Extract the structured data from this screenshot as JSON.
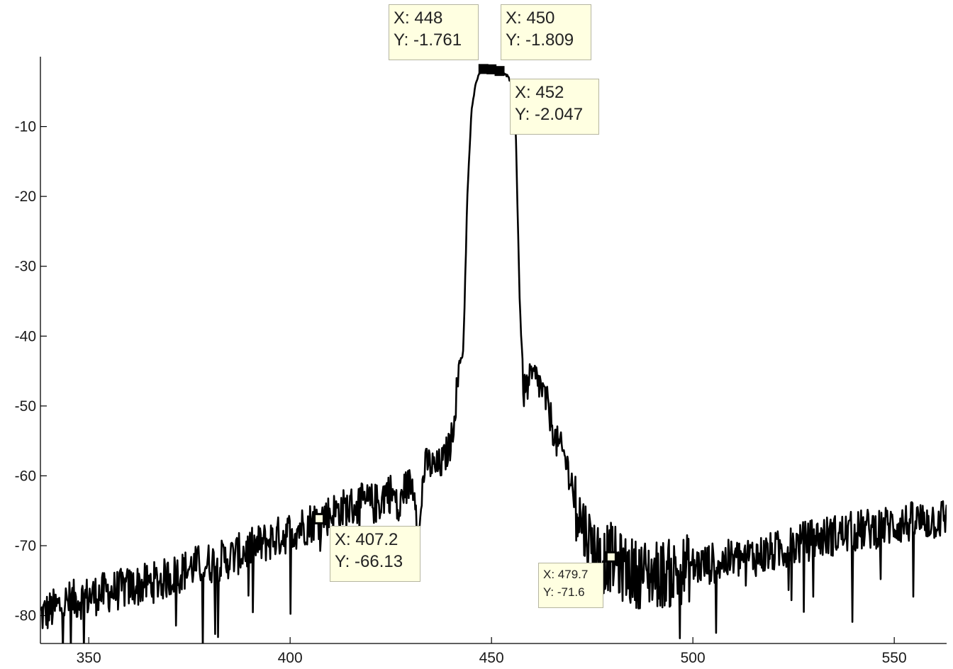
{
  "chart_data": {
    "type": "line",
    "title": "",
    "xlabel": "",
    "ylabel": "",
    "xlim": [
      338,
      563
    ],
    "ylim": [
      -84,
      0
    ],
    "xticks": [
      350,
      400,
      450,
      500,
      550
    ],
    "yticks": [
      -10,
      -20,
      -30,
      -40,
      -50,
      -60,
      -70,
      -80
    ],
    "grid": false,
    "line_color": "#000000",
    "series": [
      {
        "x": [
          338,
          345,
          352,
          360,
          368,
          376,
          384,
          392,
          400,
          407.2,
          412,
          418,
          422,
          424,
          426,
          427,
          428,
          430,
          431,
          432,
          433,
          434,
          436,
          438,
          440,
          441,
          442,
          443,
          444,
          445,
          446,
          447,
          448,
          450,
          452,
          454,
          455,
          456,
          457,
          458,
          459,
          460,
          461,
          462,
          464,
          466,
          468,
          470,
          472,
          474,
          476,
          478,
          479.7,
          482,
          486,
          490,
          495,
          500,
          510,
          520,
          530,
          540,
          550,
          563
        ],
        "y": [
          -80,
          -78,
          -77,
          -76,
          -75,
          -73,
          -72,
          -70,
          -68,
          -66.13,
          -65,
          -64,
          -64,
          -62,
          -63,
          -66,
          -62,
          -61,
          -62,
          -70,
          -60,
          -58,
          -59,
          -58,
          -55,
          -50,
          -44,
          -42,
          -20,
          -8,
          -4,
          -2.4,
          -1.761,
          -1.809,
          -2.047,
          -2.8,
          -4,
          -10,
          -35,
          -48,
          -47,
          -46,
          -46,
          -47,
          -50,
          -55,
          -57,
          -61,
          -66,
          -69,
          -71,
          -72,
          -71.6,
          -73,
          -74,
          -74,
          -74,
          -73,
          -72,
          -71,
          -69,
          -68,
          -67,
          -66
        ]
      }
    ],
    "annotations": [
      {
        "x_label": "X: 448",
        "y_label": "Y: -1.761",
        "x": 448,
        "y": -1.761
      },
      {
        "x_label": "X: 450",
        "y_label": "Y: -1.809",
        "x": 450,
        "y": -1.809
      },
      {
        "x_label": "X: 452",
        "y_label": "Y: -2.047",
        "x": 452,
        "y": -2.047
      },
      {
        "x_label": "X: 407.2",
        "y_label": "Y: -66.13",
        "x": 407.2,
        "y": -66.13
      },
      {
        "x_label": "X: 479.7",
        "y_label": "Y: -71.6",
        "x": 479.7,
        "y": -71.6
      }
    ]
  }
}
